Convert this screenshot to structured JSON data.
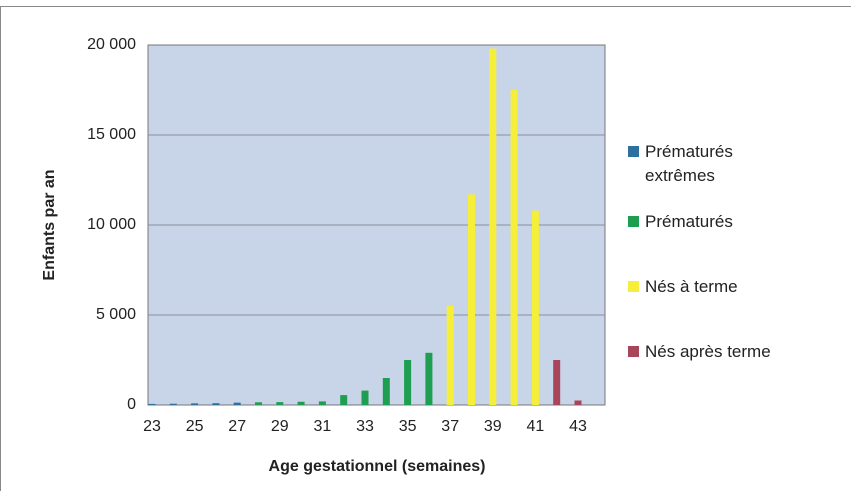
{
  "chart_data": {
    "type": "bar",
    "y_label": "Enfants par an",
    "x_label": "Age gestationnel (semaines)",
    "categories": [
      23,
      null,
      25,
      null,
      27,
      null,
      29,
      null,
      31,
      null,
      33,
      null,
      35,
      null,
      37,
      null,
      39,
      null,
      41,
      null,
      43
    ],
    "series": [
      {
        "name": "Prématurés extrêmes",
        "color": "#2f6f9f",
        "values": [
          60,
          70,
          90,
          100,
          130,
          null,
          null,
          null,
          null,
          null,
          null,
          null,
          null,
          null,
          null,
          null,
          null,
          null,
          null,
          null,
          null
        ]
      },
      {
        "name": "Prématurés",
        "color": "#1e9e50",
        "values": [
          null,
          null,
          null,
          null,
          null,
          150,
          160,
          180,
          200,
          550,
          800,
          1500,
          2500,
          2900,
          null,
          null,
          null,
          null,
          null,
          null,
          null
        ]
      },
      {
        "name": "Nés à terme",
        "color": "#f5ef3a",
        "values": [
          null,
          null,
          null,
          null,
          null,
          null,
          null,
          null,
          null,
          null,
          null,
          null,
          null,
          null,
          5500,
          11700,
          19800,
          17500,
          10800,
          null,
          null
        ]
      },
      {
        "name": "Nés après terme",
        "color": "#a8455a",
        "values": [
          null,
          null,
          null,
          null,
          null,
          null,
          null,
          null,
          null,
          null,
          null,
          null,
          null,
          null,
          null,
          null,
          null,
          null,
          null,
          2500,
          250
        ]
      }
    ],
    "ylim": [
      0,
      20000
    ],
    "yticks": [
      0,
      {
        "value": 5000,
        "label": "5 000"
      },
      {
        "value": 10000,
        "label": "10 000"
      },
      {
        "value": 15000,
        "label": "15 000"
      },
      {
        "value": 20000,
        "label": "20 000"
      }
    ],
    "grid": true
  }
}
